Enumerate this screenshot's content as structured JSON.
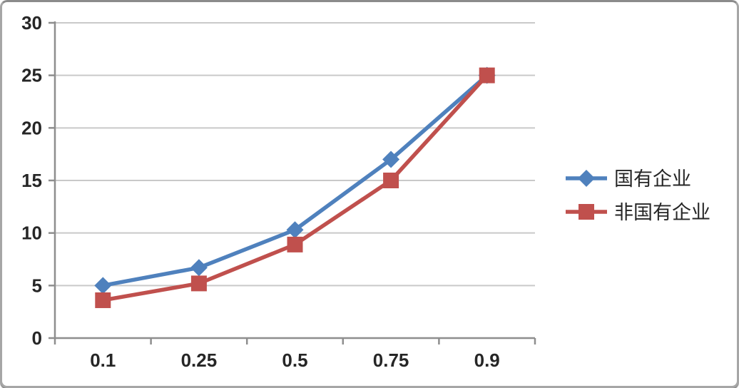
{
  "chart_data": {
    "type": "line",
    "title": "",
    "xlabel": "",
    "ylabel": "",
    "categories": [
      "0.1",
      "0.25",
      "0.5",
      "0.75",
      "0.9"
    ],
    "x": [
      0.1,
      0.25,
      0.5,
      0.75,
      0.9
    ],
    "series": [
      {
        "name": "国有企业",
        "color": "#4F81BD",
        "marker": "diamond",
        "values": [
          5,
          6.7,
          10.3,
          17,
          25
        ]
      },
      {
        "name": "非国有企业",
        "color": "#C0504D",
        "marker": "square",
        "values": [
          3.6,
          5.2,
          8.9,
          15,
          25
        ]
      }
    ],
    "ylim": [
      0,
      30
    ],
    "yticks": [
      0,
      5,
      10,
      15,
      20,
      25,
      30
    ],
    "grid": true,
    "legend_position": "right"
  },
  "colors": {
    "series_blue": "#4F81BD",
    "series_red": "#C0504D",
    "gridline": "#c9c9c9",
    "axis": "#8e8e8e",
    "tick_text": "#262626",
    "frame_border": "#a6a6a6"
  }
}
